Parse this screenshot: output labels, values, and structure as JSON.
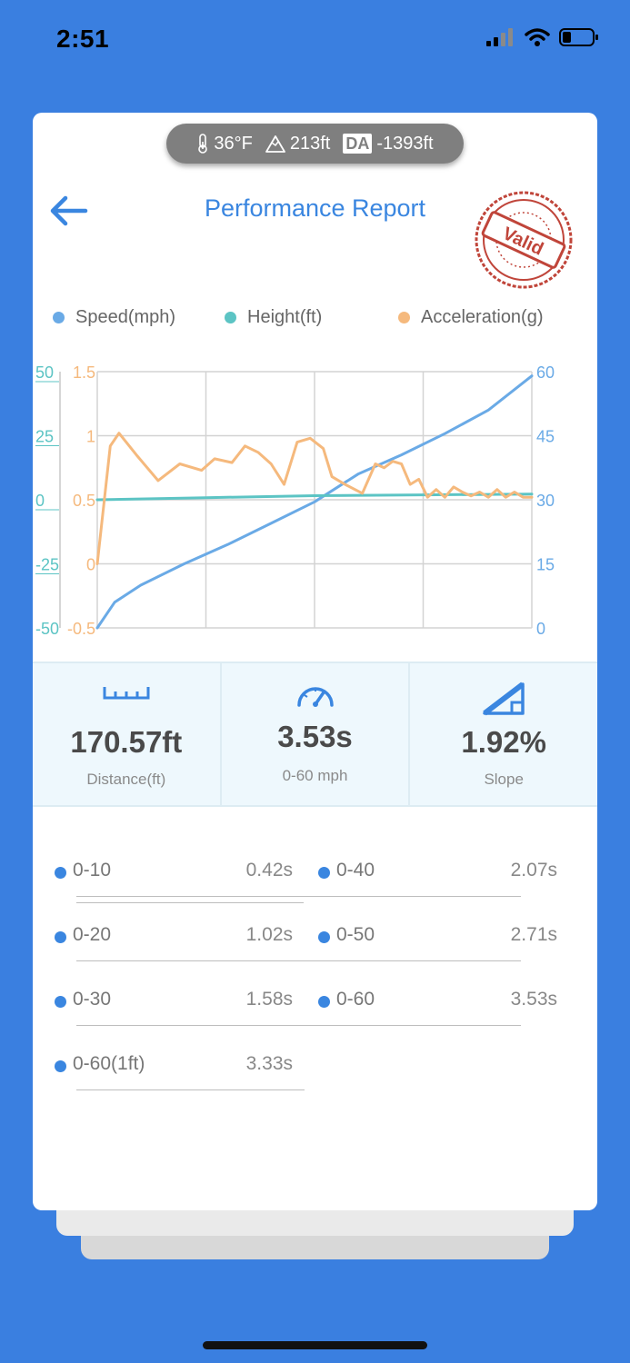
{
  "status_bar": {
    "time": "2:51"
  },
  "env": {
    "temperature": "36°F",
    "altitude": "213ft",
    "da_badge": "DA",
    "density_altitude": "-1393ft"
  },
  "header": {
    "title": "Performance Report",
    "stamp_text": "Valid"
  },
  "legend": [
    {
      "label": "Speed(mph)",
      "color": "#6aaae6"
    },
    {
      "label": "Height(ft)",
      "color": "#5cc4c4"
    },
    {
      "label": "Acceleration(g)",
      "color": "#f5b97d"
    }
  ],
  "chart_data": {
    "type": "line",
    "series": [
      {
        "name": "Speed(mph)",
        "axis": "right",
        "color": "#6aaae6",
        "x": [
          0,
          0.04,
          0.1,
          0.2,
          0.3,
          0.4,
          0.5,
          0.6,
          0.7,
          0.8,
          0.9,
          1.0
        ],
        "values": [
          0,
          6,
          10,
          15,
          19.5,
          24.5,
          29.5,
          36,
          40.5,
          45.5,
          51,
          59
        ]
      },
      {
        "name": "Height(ft)",
        "axis": "left",
        "color": "#5cc4c4",
        "x": [
          0,
          0.25,
          0.5,
          0.75,
          1.0
        ],
        "values": [
          0,
          0.8,
          1.6,
          1.9,
          2.2
        ]
      },
      {
        "name": "Acceleration(g)",
        "axis": "accel",
        "color": "#f5b97d",
        "x": [
          0,
          0.03,
          0.05,
          0.09,
          0.14,
          0.19,
          0.24,
          0.27,
          0.31,
          0.34,
          0.37,
          0.4,
          0.43,
          0.46,
          0.49,
          0.52,
          0.54,
          0.57,
          0.61,
          0.64,
          0.66,
          0.68,
          0.7,
          0.72,
          0.74,
          0.76,
          0.78,
          0.8,
          0.82,
          0.84,
          0.86,
          0.88,
          0.9,
          0.92,
          0.94,
          0.96,
          0.98,
          1.0
        ],
        "values": [
          0,
          0.92,
          1.02,
          0.85,
          0.65,
          0.78,
          0.73,
          0.82,
          0.79,
          0.92,
          0.87,
          0.78,
          0.62,
          0.95,
          0.98,
          0.9,
          0.68,
          0.62,
          0.55,
          0.78,
          0.75,
          0.8,
          0.78,
          0.62,
          0.66,
          0.52,
          0.58,
          0.52,
          0.6,
          0.56,
          0.53,
          0.56,
          0.52,
          0.58,
          0.52,
          0.56,
          0.52,
          0.52
        ]
      }
    ],
    "axes": {
      "left": {
        "ticks": [
          "50",
          "25",
          "0",
          "-25",
          "-50"
        ],
        "range": [
          -50,
          50
        ],
        "color": "#5cc4c4"
      },
      "accel": {
        "ticks": [
          "1.5",
          "1",
          "0.5",
          "0",
          "-0.5"
        ],
        "range": [
          -0.5,
          1.5
        ],
        "color": "#f5b97d"
      },
      "right": {
        "ticks": [
          "60",
          "45",
          "30",
          "15",
          "0"
        ],
        "range": [
          0,
          60
        ],
        "color": "#6aaae6"
      }
    },
    "grid": true,
    "legend_position": "top"
  },
  "stats": [
    {
      "icon": "ruler-icon",
      "value": "170.57ft",
      "label": "Distance(ft)"
    },
    {
      "icon": "speedometer-icon",
      "value": "3.53s",
      "label": "0-60 mph"
    },
    {
      "icon": "slope-icon",
      "value": "1.92%",
      "label": "Slope"
    }
  ],
  "splits": [
    {
      "label": "0-10",
      "value": "0.42s"
    },
    {
      "label": "0-40",
      "value": "2.07s"
    },
    {
      "label": "0-20",
      "value": "1.02s"
    },
    {
      "label": "0-50",
      "value": "2.71s"
    },
    {
      "label": "0-30",
      "value": "1.58s"
    },
    {
      "label": "0-60",
      "value": "3.53s"
    },
    {
      "label": "0-60(1ft)",
      "value": "3.33s"
    }
  ]
}
